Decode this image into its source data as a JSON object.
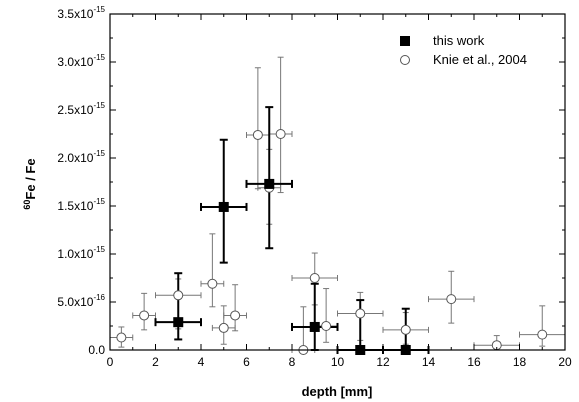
{
  "chart_data": {
    "type": "scatter",
    "title": "",
    "xlabel": "depth [mm]",
    "ylabel_superscript": "60",
    "ylabel_main": "Fe / Fe",
    "xlim": [
      0,
      20
    ],
    "ylim": [
      0,
      3.5e-15
    ],
    "x_ticks": [
      {
        "value": 0,
        "label": "0"
      },
      {
        "value": 2,
        "label": "2"
      },
      {
        "value": 4,
        "label": "4"
      },
      {
        "value": 6,
        "label": "6"
      },
      {
        "value": 8,
        "label": "8"
      },
      {
        "value": 10,
        "label": "10"
      },
      {
        "value": 12,
        "label": "12"
      },
      {
        "value": 14,
        "label": "14"
      },
      {
        "value": 16,
        "label": "16"
      },
      {
        "value": 18,
        "label": "18"
      },
      {
        "value": 20,
        "label": "20"
      }
    ],
    "y_ticks": [
      {
        "value": 0,
        "mant": "0.0",
        "exp": ""
      },
      {
        "value": 5e-16,
        "mant": "5.0x10",
        "exp": "-16"
      },
      {
        "value": 1e-15,
        "mant": "1.0x10",
        "exp": "-15"
      },
      {
        "value": 1.5e-15,
        "mant": "1.5x10",
        "exp": "-15"
      },
      {
        "value": 2e-15,
        "mant": "2.0x10",
        "exp": "-15"
      },
      {
        "value": 2.5e-15,
        "mant": "2.5x10",
        "exp": "-15"
      },
      {
        "value": 3e-15,
        "mant": "3.0x10",
        "exp": "-15"
      },
      {
        "value": 3.5e-15,
        "mant": "3.5x10",
        "exp": "-15"
      }
    ],
    "grid": false,
    "legend_position": "top-right",
    "series": [
      {
        "name": "this work",
        "marker": "filled-square",
        "color": "#000000",
        "points": [
          {
            "x": 3,
            "y": 2.9e-16,
            "xerr": 1.0,
            "yerr_lo": 1.8e-16,
            "yerr_hi": 5.1e-16
          },
          {
            "x": 5,
            "y": 1.49e-15,
            "xerr": 1.0,
            "yerr_lo": 5.8e-16,
            "yerr_hi": 7e-16
          },
          {
            "x": 7,
            "y": 1.73e-15,
            "xerr": 1.0,
            "yerr_lo": 6.7e-16,
            "yerr_hi": 8e-16
          },
          {
            "x": 9,
            "y": 2.4e-16,
            "xerr": 1.0,
            "yerr_lo": 2.4e-16,
            "yerr_hi": 4.5e-16
          },
          {
            "x": 11,
            "y": 0.0,
            "xerr": 1.0,
            "yerr_lo": 0.0,
            "yerr_hi": 5.2e-16
          },
          {
            "x": 13,
            "y": 0.0,
            "xerr": 1.0,
            "yerr_lo": 0.0,
            "yerr_hi": 4.3e-16
          }
        ]
      },
      {
        "name": "Knie et al., 2004",
        "marker": "open-circle",
        "color": "#777777",
        "points": [
          {
            "x": 0.5,
            "y": 1.3e-16,
            "xerr": 0.5,
            "yerr_lo": 1e-16,
            "yerr_hi": 1.1e-16
          },
          {
            "x": 1.5,
            "y": 3.6e-16,
            "xerr": 0.5,
            "yerr_lo": 1.5e-16,
            "yerr_hi": 2.3e-16
          },
          {
            "x": 3.0,
            "y": 5.7e-16,
            "xerr": 1.0,
            "yerr_lo": 3.5e-16,
            "yerr_hi": 1.7e-16
          },
          {
            "x": 4.5,
            "y": 6.9e-16,
            "xerr": 0.5,
            "yerr_lo": 2.4e-16,
            "yerr_hi": 5.2e-16
          },
          {
            "x": 5.0,
            "y": 2.3e-16,
            "xerr": 0.5,
            "yerr_lo": 1.7e-16,
            "yerr_hi": 2.3e-16
          },
          {
            "x": 5.5,
            "y": 3.6e-16,
            "xerr": 0.5,
            "yerr_lo": 1.6e-16,
            "yerr_hi": 3.2e-16
          },
          {
            "x": 6.5,
            "y": 2.24e-15,
            "xerr": 0.5,
            "yerr_lo": 5.6e-16,
            "yerr_hi": 7e-16
          },
          {
            "x": 7.0,
            "y": 1.69e-15,
            "xerr": 0.5,
            "yerr_lo": 3.8e-16,
            "yerr_hi": 4e-16
          },
          {
            "x": 7.5,
            "y": 2.25e-15,
            "xerr": 0.5,
            "yerr_lo": 6.1e-16,
            "yerr_hi": 8e-16
          },
          {
            "x": 8.5,
            "y": 0.0,
            "xerr": 0.5,
            "yerr_lo": 0.0,
            "yerr_hi": 4.5e-16
          },
          {
            "x": 9.0,
            "y": 7.5e-16,
            "xerr": 1.0,
            "yerr_lo": 2.8e-16,
            "yerr_hi": 2.6e-16
          },
          {
            "x": 9.5,
            "y": 2.5e-16,
            "xerr": 0.5,
            "yerr_lo": 1.7e-16,
            "yerr_hi": 3.9e-16
          },
          {
            "x": 11.0,
            "y": 3.8e-16,
            "xerr": 1.0,
            "yerr_lo": 2.8e-16,
            "yerr_hi": 2.2e-16
          },
          {
            "x": 13.0,
            "y": 2.1e-16,
            "xerr": 1.0,
            "yerr_lo": 1.5e-16,
            "yerr_hi": 1.8e-16
          },
          {
            "x": 15.0,
            "y": 5.3e-16,
            "xerr": 1.0,
            "yerr_lo": 2.5e-16,
            "yerr_hi": 2.9e-16
          },
          {
            "x": 17.0,
            "y": 5e-17,
            "xerr": 1.0,
            "yerr_lo": 5e-17,
            "yerr_hi": 1e-16
          },
          {
            "x": 19.0,
            "y": 1.6e-16,
            "xerr": 1.0,
            "yerr_lo": 1.2e-16,
            "yerr_hi": 3e-16
          }
        ]
      }
    ]
  }
}
